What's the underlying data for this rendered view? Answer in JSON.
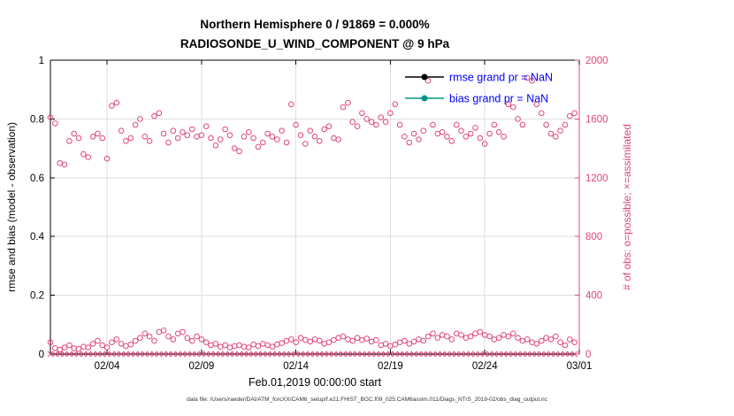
{
  "chart_data": {
    "type": "scatter",
    "title": "Northern Hemisphere 0 / 91869 = 0.000%",
    "subtitle": "RADIOSONDE_U_WIND_COMPONENT @ 9 hPa",
    "xlabel": "Feb.01,2019 00:00:00 start",
    "ylabel_left": "rmse and bias (model - observation)",
    "ylabel_right": "# of obs: o=possible; ×=assimilated",
    "caption": "data file: /Users/raeder/DAI/ATM_forcXX/CAM6_setup/f.e21.FHIST_BGC.f09_025.CAM6assim.011/Diags_NTrS_2019-02/obs_diag_output.nc",
    "ylim_left": [
      0,
      1
    ],
    "ylim_right": [
      0,
      2000
    ],
    "yticks_left": [
      0,
      0.2,
      0.4,
      0.6,
      0.8,
      1
    ],
    "yticks_right": [
      0,
      400,
      800,
      1200,
      1600,
      2000
    ],
    "xlim_days": [
      0,
      28
    ],
    "xticks": [
      {
        "day": 3,
        "label": "02/04"
      },
      {
        "day": 8,
        "label": "02/09"
      },
      {
        "day": 13,
        "label": "02/14"
      },
      {
        "day": 18,
        "label": "02/19"
      },
      {
        "day": 23,
        "label": "02/24"
      },
      {
        "day": 28,
        "label": "03/01"
      }
    ],
    "grid": true,
    "style": {
      "obs_color": "#e0457e",
      "axis_color": "#000000",
      "grid_color": "#dedede"
    },
    "legend": {
      "position": "top-right-inside",
      "text_color": "#0000ff",
      "entries": [
        {
          "label": "rmse grand pr = NaN",
          "color": "#000000",
          "value": "NaN"
        },
        {
          "label": "bias grand pr = NaN",
          "color": "#009688",
          "value": "NaN"
        }
      ]
    },
    "series": [
      {
        "name": "num_obs_possible_upper_band",
        "marker": "o",
        "axis": "right",
        "color": "#e0457e",
        "x_start_day": 0.0,
        "x_step_days": 0.25,
        "values": [
          1610,
          1570,
          1300,
          1290,
          1450,
          1500,
          1470,
          1360,
          1340,
          1480,
          1500,
          1470,
          1330,
          1690,
          1710,
          1520,
          1450,
          1470,
          1560,
          1600,
          1480,
          1450,
          1620,
          1640,
          1500,
          1440,
          1520,
          1470,
          1510,
          1490,
          1530,
          1480,
          1490,
          1550,
          1470,
          1420,
          1460,
          1530,
          1490,
          1400,
          1380,
          1480,
          1510,
          1470,
          1410,
          1440,
          1500,
          1480,
          1460,
          1520,
          1440,
          1700,
          1560,
          1490,
          1430,
          1520,
          1480,
          1450,
          1530,
          1550,
          1470,
          1460,
          1680,
          1710,
          1580,
          1550,
          1640,
          1600,
          1580,
          1560,
          1610,
          1580,
          1640,
          1700,
          1560,
          1480,
          1440,
          1500,
          1460,
          1520,
          1860,
          1560,
          1500,
          1510,
          1480,
          1450,
          1560,
          1520,
          1480,
          1500,
          1540,
          1470,
          1430,
          1500,
          1560,
          1510,
          1480,
          1700,
          1680,
          1600,
          1560,
          1880,
          1860,
          1700,
          1640,
          1560,
          1500,
          1480,
          1520,
          1560,
          1620,
          1640
        ]
      },
      {
        "name": "num_obs_possible_lower_band",
        "marker": "o",
        "axis": "right",
        "color": "#e0457e",
        "x_start_day": 0.0,
        "x_step_days": 0.25,
        "values": [
          80,
          40,
          30,
          45,
          60,
          40,
          35,
          50,
          45,
          70,
          90,
          60,
          45,
          80,
          100,
          70,
          55,
          65,
          90,
          110,
          140,
          120,
          90,
          150,
          160,
          120,
          100,
          140,
          150,
          110,
          90,
          120,
          100,
          80,
          60,
          70,
          50,
          60,
          45,
          55,
          60,
          50,
          45,
          65,
          55,
          70,
          60,
          50,
          65,
          75,
          90,
          100,
          80,
          110,
          95,
          85,
          100,
          90,
          70,
          80,
          95,
          110,
          120,
          100,
          90,
          110,
          95,
          105,
          85,
          95,
          60,
          70,
          55,
          65,
          80,
          90,
          70,
          85,
          100,
          90,
          120,
          140,
          110,
          130,
          120,
          100,
          140,
          130,
          110,
          120,
          140,
          150,
          130,
          120,
          100,
          110,
          130,
          120,
          140,
          110,
          90,
          100,
          80,
          70,
          90,
          110,
          100,
          120,
          80,
          60,
          100,
          80
        ]
      },
      {
        "name": "num_obs_assimilated",
        "marker": "x",
        "axis": "right",
        "color": "#e0457e",
        "x_start_day": 0.0,
        "x_step_days": 0.25,
        "n": 112,
        "constant_value": 0
      }
    ]
  }
}
